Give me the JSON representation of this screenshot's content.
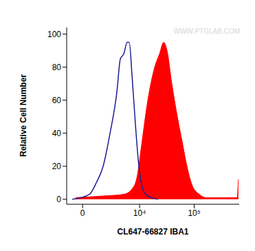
{
  "chart_data": {
    "type": "histogram",
    "x_label": "CL647-66827 IBA1",
    "y_label": "Relative Cell Number",
    "annotations": [
      "WWW.PTGLAB.COM"
    ],
    "log": "x",
    "xlim": [
      -1000,
      620000
    ],
    "xticks": [
      0,
      {
        "value": 10000,
        "label": "10⁴"
      },
      {
        "value": 100000,
        "label": "10⁵"
      }
    ],
    "ylim": [
      -3,
      104
    ],
    "yticks": [
      0,
      20,
      40,
      60,
      80,
      100
    ],
    "grid": false,
    "series": [
      {
        "type": "line",
        "color": "#1c1c96",
        "x": [
          -574,
          356,
          824,
          1441,
          2260,
          3333,
          4000,
          4755,
          5631,
          6213,
          7077,
          8299,
          9688,
          11300,
          13143,
          16700,
          22365
        ],
        "values": [
          0,
          3,
          10,
          20,
          40,
          65,
          85,
          88,
          95,
          95,
          75,
          45,
          20,
          7,
          3,
          1,
          0
        ]
      },
      {
        "type": "area",
        "color": "#ff0000",
        "x": [
          -355,
          1441,
          4755,
          7788,
          9111,
          10632,
          14387,
          19342,
          23720,
          28242,
          32597,
          39773,
          50000,
          60883,
          74214,
          92989,
          122987,
          162761,
          570000,
          600000
        ],
        "values": [
          1,
          2,
          3,
          8,
          15,
          30,
          60,
          80,
          88,
          95,
          90,
          70,
          50,
          35,
          20,
          8,
          3,
          1,
          1,
          12
        ]
      }
    ]
  }
}
